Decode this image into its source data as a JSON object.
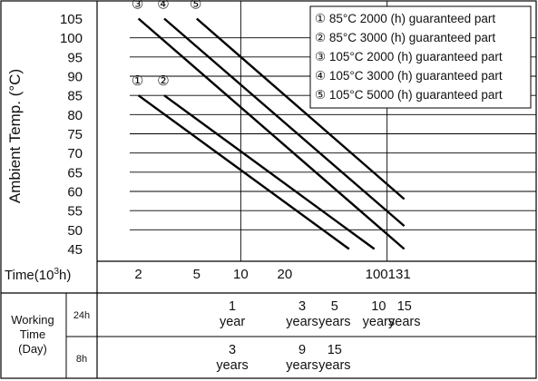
{
  "chart_data": {
    "type": "line",
    "ylabel": "Ambient Temp. (°C)",
    "x_axis": {
      "label_prefix": "Time(10",
      "label_exp": "3",
      "label_suffix": "h)",
      "scale": "log",
      "tick_labels": [
        {
          "value": 2,
          "label": "2"
        },
        {
          "value": 5,
          "label": "5"
        },
        {
          "value": 10,
          "label": "10"
        },
        {
          "value": 20,
          "label": "20"
        },
        {
          "value": 100,
          "label": "100"
        },
        {
          "value": 131,
          "label": "131"
        }
      ]
    },
    "y_axis": {
      "ylim": [
        45,
        105
      ],
      "ticks": [
        45,
        50,
        55,
        60,
        65,
        70,
        75,
        80,
        85,
        90,
        95,
        100,
        105
      ]
    },
    "grid": true,
    "legend_position": "top-right",
    "legend": [
      {
        "marker": "①",
        "text": "85°C 2000 (h) guaranteed part"
      },
      {
        "marker": "②",
        "text": "85°C 3000 (h) guaranteed part"
      },
      {
        "marker": "③",
        "text": "105°C 2000 (h) guaranteed part"
      },
      {
        "marker": "④",
        "text": "105°C 3000 (h) guaranteed part"
      },
      {
        "marker": "⑤",
        "text": "105°C 5000 (h) guaranteed part"
      }
    ],
    "series": [
      {
        "marker": "①",
        "points": [
          [
            2,
            85
          ],
          [
            55,
            45
          ]
        ]
      },
      {
        "marker": "②",
        "points": [
          [
            3,
            85
          ],
          [
            82,
            45
          ]
        ]
      },
      {
        "marker": "③",
        "points": [
          [
            2,
            105
          ],
          [
            131,
            45
          ]
        ]
      },
      {
        "marker": "④",
        "points": [
          [
            3,
            105
          ],
          [
            131,
            51
          ]
        ]
      },
      {
        "marker": "⑤",
        "points": [
          [
            5,
            105
          ],
          [
            131,
            58
          ]
        ]
      }
    ]
  },
  "working_time": {
    "label": [
      "Working",
      "Time",
      "(Day)"
    ],
    "rows": [
      {
        "label": "24h",
        "entries": [
          {
            "x": 8.76,
            "num": "1",
            "unit": "year"
          },
          {
            "x": 26.28,
            "num": "3",
            "unit": "years"
          },
          {
            "x": 43.8,
            "num": "5",
            "unit": "years"
          },
          {
            "x": 87.6,
            "num": "10",
            "unit": "years"
          },
          {
            "x": 131.4,
            "num": "15",
            "unit": "years"
          }
        ]
      },
      {
        "label": "8h",
        "entries": [
          {
            "x": 8.76,
            "num": "3",
            "unit": "years"
          },
          {
            "x": 26.28,
            "num": "9",
            "unit": "years"
          },
          {
            "x": 43.8,
            "num": "15",
            "unit": "years"
          }
        ]
      }
    ]
  }
}
